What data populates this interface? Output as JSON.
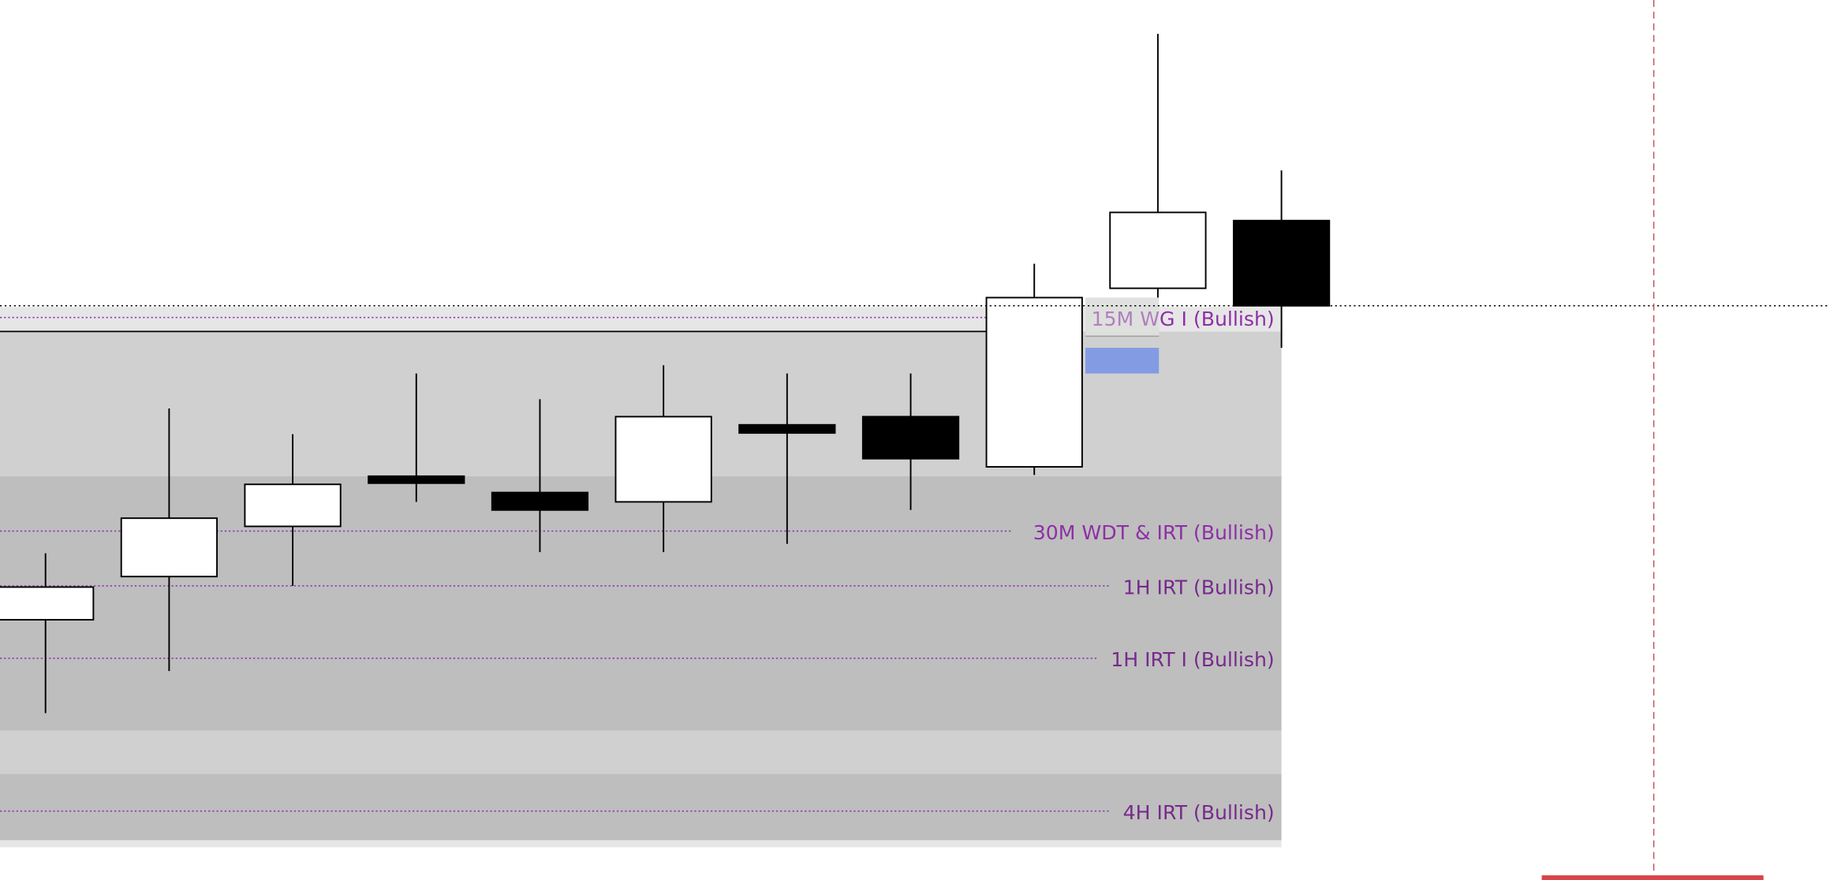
{
  "chart_data": {
    "type": "candlestick",
    "title": "",
    "xlabel": "",
    "ylabel": "",
    "ylim": [
      0,
      754
    ],
    "grid": false,
    "colors": {
      "bullish_body": "#ffffff",
      "bearish_body": "#000000",
      "zone_light": "#e6e6e6",
      "zone_mid": "#d0d0d0",
      "zone_dark": "#bebebe",
      "level_line": "#8e2fa6",
      "level_text": "#8e2fa6",
      "level_text_dark": "#772a8c",
      "vertical_marker": "#c8505a",
      "fvg_green": "#dde0dd",
      "fvg_blue": "#839be3",
      "bottom_bar": "#d9434b"
    },
    "candles": [
      {
        "open": 223,
        "high": 280,
        "low": 143,
        "close": 251
      },
      {
        "open": 260,
        "high": 404,
        "low": 179,
        "close": 310
      },
      {
        "open": 303,
        "high": 382,
        "low": 252,
        "close": 339
      },
      {
        "open": 346,
        "high": 434,
        "low": 324,
        "close": 340
      },
      {
        "open": 332,
        "high": 412,
        "low": 281,
        "close": 317
      },
      {
        "open": 324,
        "high": 441,
        "low": 281,
        "close": 397
      },
      {
        "open": 390,
        "high": 434,
        "low": 288,
        "close": 383
      },
      {
        "open": 397,
        "high": 434,
        "low": 317,
        "close": 361
      },
      {
        "open": 354,
        "high": 528,
        "low": 347,
        "close": 499
      },
      {
        "open": 507,
        "high": 725,
        "low": 499,
        "close": 572
      },
      {
        "open": 565,
        "high": 608,
        "low": 456,
        "close": 492
      }
    ],
    "zones": [
      {
        "from": 470,
        "to": 491,
        "shade": "zone_light"
      },
      {
        "from": 346,
        "to": 470,
        "shade": "zone_mid"
      },
      {
        "from": 128,
        "to": 346,
        "shade": "zone_dark"
      },
      {
        "from": 91,
        "to": 128,
        "shade": "zone_mid"
      },
      {
        "from": 34,
        "to": 91,
        "shade": "zone_dark"
      },
      {
        "from": 28,
        "to": 34,
        "shade": "zone_light"
      }
    ],
    "levels": [
      {
        "price": 482,
        "label": "15M WG I (Bullish)"
      },
      {
        "price": 299,
        "label": "30M WDT & IRT (Bullish)"
      },
      {
        "price": 252,
        "label": "1H IRT (Bullish)"
      },
      {
        "price": 190,
        "label": "1H IRT I (Bullish)"
      },
      {
        "price": 59,
        "label": "4H IRT (Bullish)"
      }
    ],
    "current_price": 492,
    "range_line": 470,
    "fvg": {
      "green": [
        466,
        499
      ],
      "blue": [
        434,
        456
      ]
    }
  }
}
